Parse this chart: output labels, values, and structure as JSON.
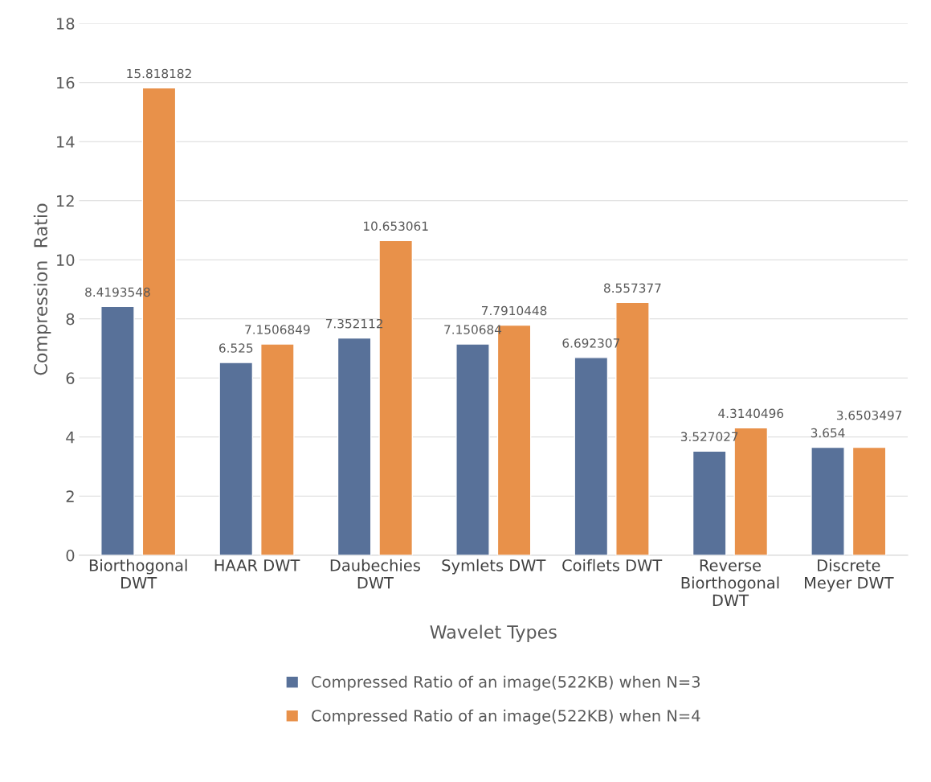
{
  "chart_data": {
    "type": "bar",
    "xlabel": "Wavelet Types",
    "ylabel": "Compression  Ratio",
    "categories": [
      "Biorthogonal\nDWT",
      "HAAR DWT",
      "Daubechies\nDWT",
      "Symlets DWT",
      "Coiflets DWT",
      "Reverse\nBiorthogonal\nDWT",
      "Discrete\nMeyer DWT"
    ],
    "series": [
      {
        "name": "Compressed Ratio of an image(522KB) when N=3",
        "color": "#587199",
        "values": [
          8.4193548,
          6.525,
          7.352112,
          7.150684,
          6.692307,
          3.527027,
          3.654
        ]
      },
      {
        "name": "Compressed Ratio of an image(522KB) when N=4",
        "color": "#e8914a",
        "values": [
          15.818182,
          7.1506849,
          10.653061,
          7.7910448,
          8.557377,
          4.3140496,
          3.6503497
        ]
      }
    ],
    "ylim": [
      0,
      18
    ],
    "yticks": [
      0,
      2,
      4,
      6,
      8,
      10,
      12,
      14,
      16,
      18
    ],
    "grid": "y",
    "legend": "bottom",
    "data_labels": true
  }
}
